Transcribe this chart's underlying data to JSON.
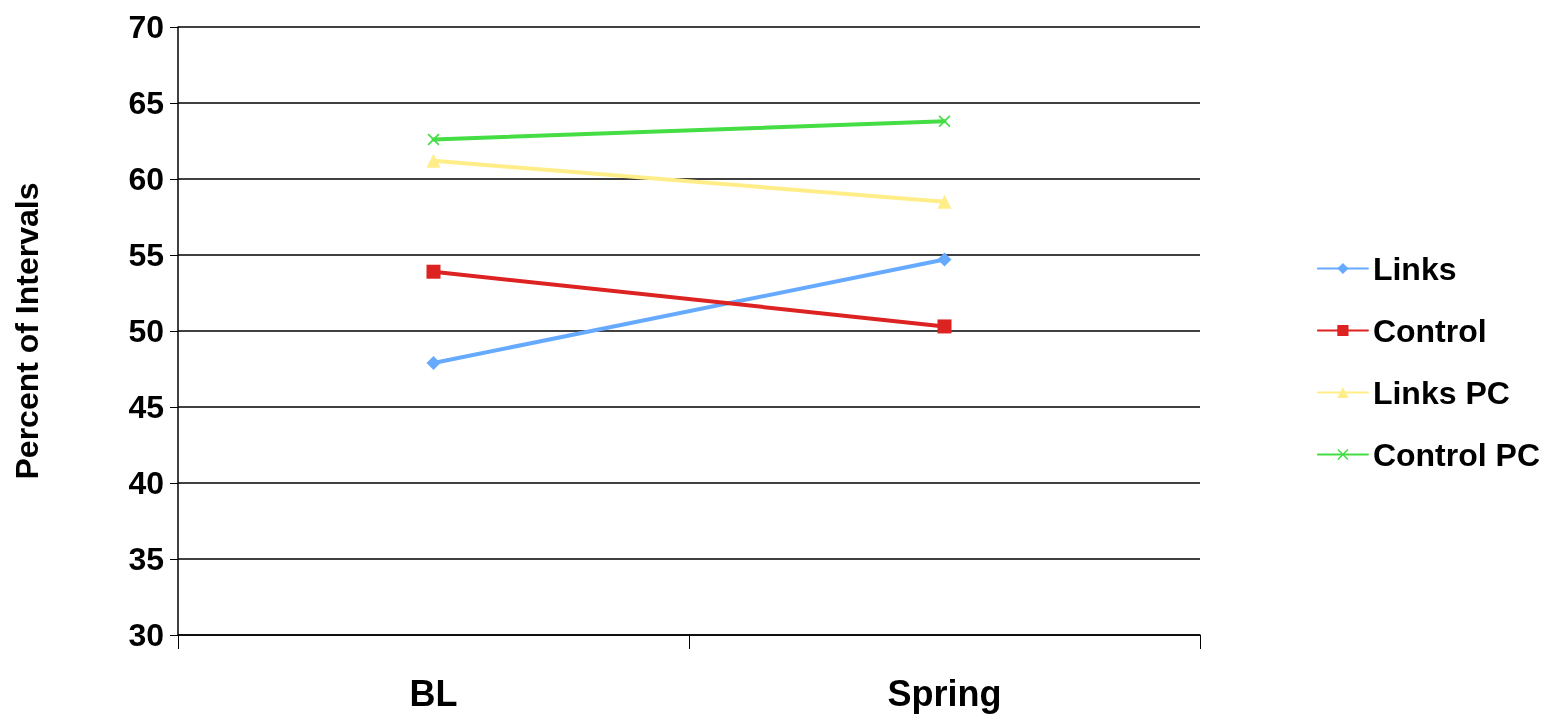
{
  "chart_data": {
    "type": "line",
    "ylabel": "Percent of Intervals",
    "categories": [
      "BL",
      "Spring"
    ],
    "series": [
      {
        "name": "Links",
        "color": "#66aaff",
        "marker": "diamond",
        "values": [
          47.9,
          54.7
        ]
      },
      {
        "name": "Control",
        "color": "#dd2222",
        "marker": "square",
        "values": [
          53.9,
          50.3
        ]
      },
      {
        "name": "Links PC",
        "color": "#ffee88",
        "marker": "triangle",
        "values": [
          61.2,
          58.5
        ]
      },
      {
        "name": "Control PC",
        "color": "#44dd44",
        "marker": "cross",
        "values": [
          62.6,
          63.8
        ]
      }
    ],
    "ylim": [
      30,
      70
    ],
    "yticks": [
      30,
      35,
      40,
      45,
      50,
      55,
      60,
      65,
      70
    ],
    "grid": "y",
    "legend": "right",
    "line_style": "solid"
  }
}
